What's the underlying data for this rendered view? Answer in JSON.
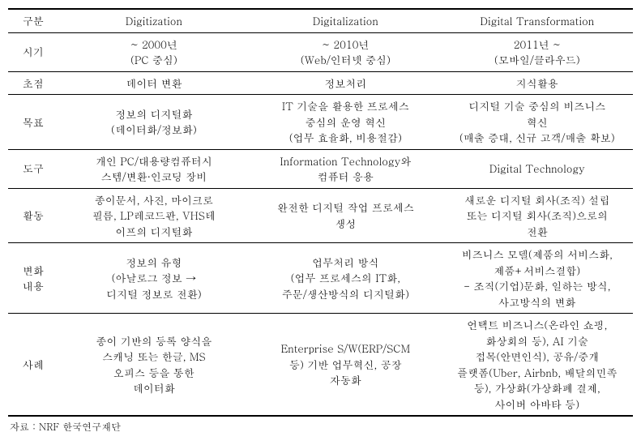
{
  "table": {
    "headers": [
      "구분",
      "Digitization",
      "Digitalization",
      "Digital Transformation"
    ],
    "rows": [
      {
        "label": "시기",
        "cells": [
          "~ 2000년\n(PC 중심)",
          "~ 2010년\n(Web/인터넷 중심)",
          "2011년 ~\n(모바일/클라우드)"
        ]
      },
      {
        "label": "초점",
        "cells": [
          "데이터 변환",
          "정보처리",
          "지식활용"
        ]
      },
      {
        "label": "목표",
        "cells": [
          "정보의 디지털화\n(데이터화/정보화)",
          "IT 기술을 활용한 프로세스\n중심의 운영 혁신\n(업무 효율화, 비용절감)",
          "디지털 기술 중심의 비즈니스\n혁신\n(매출 증대, 신규 고객/매출 확보)"
        ]
      },
      {
        "label": "도구",
        "cells": [
          "개인 PC/대용량컴퓨터시\n스템/변환·인코딩 장비",
          "Information Technology와\n컴퓨터 응용",
          "Digital Technology"
        ]
      },
      {
        "label": "활동",
        "cells": [
          "종이문서, 사진, 마이크로\n필름, LP레코드판, VHS테\n이프의 디지털화",
          "완전한 디지털 작업 프로세스\n생성",
          "새로운 디지털 회사(조직) 설립\n또는 디지털 회사(조직)으로의\n전환"
        ]
      },
      {
        "label": "변화\n내용",
        "cells": [
          "정보의 유형\n(아날로그 정보 →\n디지털 정보로 전환)",
          "업무처리 방식\n(업무 프로세스의 IT화,\n주문/생산방식의 디지털화)",
          "비즈니스 모델(제품의 서비스화,\n제품+서비스결합)\n- 조직(기업)문화, 일하는 방식,\n사고방식의 변화"
        ]
      },
      {
        "label": "사례",
        "cells": [
          "종이 기반의 등록 양식을\n스캐닝 또는 한글, MS\n오피스 등을 통한\n데이터화",
          "Enterprise S/W(ERP/SCM\n등) 기반 업무혁신, 공장\n자동화",
          "언택트 비즈니스(온라인 쇼핑,\n화상회의 등), AI 기술\n접목(안면인식), 공유/중개\n플랫폼(Uber, Airbnb, 배달의민족\n등), 가상화(가상화폐 결제,\n사이버 아바타 등)"
        ]
      }
    ]
  },
  "source": "자료 : NRF 한국연구재단"
}
